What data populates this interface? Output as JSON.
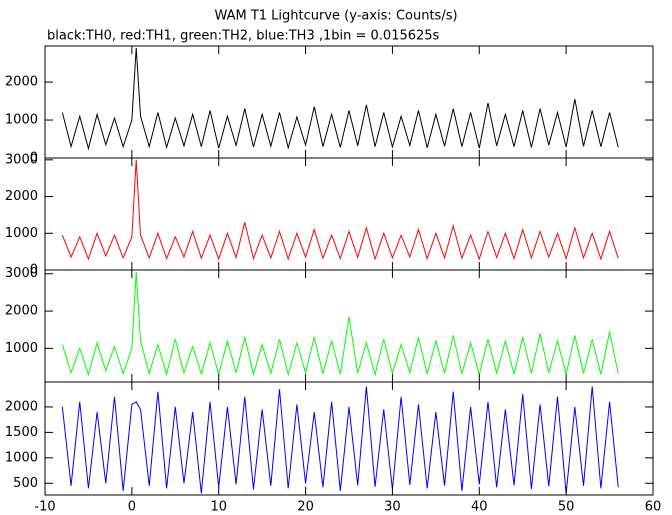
{
  "title": "WAM T1 Lightcurve (y-axis: Counts/s)",
  "subtitle": "black:TH0, red:TH1, green:TH2, blue:TH3 ,1bin = 0.015625s",
  "chart_data": [
    {
      "type": "line",
      "color": "#000000",
      "xlim": [
        -10,
        60
      ],
      "xticks": [
        -10,
        0,
        10,
        20,
        30,
        40,
        50,
        60
      ],
      "ylim": [
        0,
        2950
      ],
      "yticks": [
        0,
        1000,
        2000
      ],
      "x": [
        -8,
        -7,
        -6,
        -5,
        -4,
        -3,
        -2,
        -1,
        0,
        0.5,
        1,
        2,
        3,
        4,
        5,
        6,
        7,
        8,
        9,
        10,
        11,
        12,
        13,
        14,
        15,
        16,
        17,
        18,
        19,
        20,
        21,
        22,
        23,
        24,
        25,
        26,
        27,
        28,
        29,
        30,
        31,
        32,
        33,
        34,
        35,
        36,
        37,
        38,
        39,
        40,
        41,
        42,
        43,
        44,
        45,
        46,
        47,
        48,
        49,
        50,
        51,
        52,
        53,
        54,
        55,
        56
      ],
      "values": [
        1200,
        300,
        1100,
        250,
        1150,
        350,
        1050,
        300,
        1000,
        2900,
        1100,
        300,
        1200,
        280,
        1050,
        320,
        1150,
        300,
        1250,
        260,
        1100,
        330,
        1300,
        290,
        1150,
        310,
        1200,
        270,
        1080,
        340,
        1350,
        300,
        1150,
        280,
        1250,
        320,
        1400,
        300,
        1200,
        290,
        1100,
        330,
        1250,
        270,
        1150,
        310,
        1300,
        300,
        1200,
        260,
        1450,
        320,
        1150,
        300,
        1250,
        280,
        1300,
        340,
        1200,
        290,
        1550,
        310,
        1250,
        300,
        1200,
        280
      ]
    },
    {
      "type": "line",
      "color": "#ff0000",
      "xlim": [
        -10,
        60
      ],
      "xticks": [
        -10,
        0,
        10,
        20,
        30,
        40,
        50,
        60
      ],
      "ylim": [
        0,
        3050
      ],
      "yticks": [
        0,
        1000,
        2000,
        3000
      ],
      "x": [
        -8,
        -7,
        -6,
        -5,
        -4,
        -3,
        -2,
        -1,
        0,
        0.5,
        1,
        2,
        3,
        4,
        5,
        6,
        7,
        8,
        9,
        10,
        11,
        12,
        13,
        14,
        15,
        16,
        17,
        18,
        19,
        20,
        21,
        22,
        23,
        24,
        25,
        26,
        27,
        28,
        29,
        30,
        31,
        32,
        33,
        34,
        35,
        36,
        37,
        38,
        39,
        40,
        41,
        42,
        43,
        44,
        45,
        46,
        47,
        48,
        49,
        50,
        51,
        52,
        53,
        54,
        55,
        56
      ],
      "values": [
        950,
        350,
        900,
        300,
        1000,
        380,
        950,
        330,
        900,
        3000,
        950,
        330,
        1000,
        310,
        900,
        350,
        1050,
        320,
        950,
        300,
        1000,
        340,
        1300,
        310,
        950,
        330,
        1050,
        300,
        1000,
        350,
        1100,
        320,
        950,
        310,
        1050,
        340,
        1150,
        300,
        1000,
        330,
        950,
        350,
        1100,
        310,
        1000,
        330,
        1200,
        320,
        950,
        300,
        1050,
        340,
        1000,
        310,
        1100,
        330,
        1050,
        350,
        1000,
        310,
        1150,
        330,
        1000,
        300,
        1050,
        320
      ]
    },
    {
      "type": "line",
      "color": "#00ff00",
      "xlim": [
        -10,
        60
      ],
      "xticks": [
        -10,
        0,
        10,
        20,
        30,
        40,
        50,
        60
      ],
      "ylim": [
        100,
        3100
      ],
      "yticks": [
        1000,
        2000,
        3000
      ],
      "x": [
        -8,
        -7,
        -6,
        -5,
        -4,
        -3,
        -2,
        -1,
        0,
        0.5,
        1,
        2,
        3,
        4,
        5,
        6,
        7,
        8,
        9,
        10,
        11,
        12,
        13,
        14,
        15,
        16,
        17,
        18,
        19,
        20,
        21,
        22,
        23,
        24,
        25,
        26,
        27,
        28,
        29,
        30,
        31,
        32,
        33,
        34,
        35,
        36,
        37,
        38,
        39,
        40,
        41,
        42,
        43,
        44,
        45,
        46,
        47,
        48,
        49,
        50,
        51,
        52,
        53,
        54,
        55,
        56
      ],
      "values": [
        1100,
        350,
        1000,
        300,
        1150,
        400,
        1050,
        330,
        1000,
        3050,
        1200,
        330,
        1100,
        310,
        1250,
        350,
        1050,
        320,
        1150,
        300,
        1200,
        340,
        1300,
        310,
        1100,
        330,
        1250,
        300,
        1150,
        350,
        1300,
        320,
        1200,
        310,
        1850,
        340,
        1150,
        300,
        1250,
        330,
        1100,
        350,
        1300,
        310,
        1200,
        330,
        1350,
        320,
        1150,
        300,
        1250,
        340,
        1200,
        310,
        1300,
        330,
        1400,
        350,
        1200,
        310,
        1350,
        330,
        1250,
        300,
        1450,
        320
      ]
    },
    {
      "type": "line",
      "color": "#0000ff",
      "xlim": [
        -10,
        60
      ],
      "xticks": [
        -10,
        0,
        10,
        20,
        30,
        40,
        50,
        60
      ],
      "ylim": [
        270,
        2490
      ],
      "yticks": [
        500,
        1000,
        1500,
        2000
      ],
      "x": [
        -8,
        -7,
        -6,
        -5,
        -4,
        -3,
        -2,
        -1,
        0,
        0.5,
        1,
        2,
        3,
        4,
        5,
        6,
        7,
        8,
        9,
        10,
        11,
        12,
        13,
        14,
        15,
        16,
        17,
        18,
        19,
        20,
        21,
        22,
        23,
        24,
        25,
        26,
        27,
        28,
        29,
        30,
        31,
        32,
        33,
        34,
        35,
        36,
        37,
        38,
        39,
        40,
        41,
        42,
        43,
        44,
        45,
        46,
        47,
        48,
        49,
        50,
        51,
        52,
        53,
        54,
        55,
        56
      ],
      "values": [
        2000,
        450,
        2100,
        400,
        1900,
        500,
        2200,
        350,
        2050,
        2100,
        1950,
        450,
        2300,
        400,
        2000,
        500,
        1900,
        300,
        2100,
        420,
        2000,
        480,
        2200,
        380,
        1950,
        450,
        2350,
        400,
        2050,
        500,
        1900,
        420,
        2100,
        350,
        2000,
        460,
        2400,
        430,
        1950,
        380,
        2200,
        470,
        2050,
        400,
        1900,
        450,
        2300,
        350,
        2000,
        480,
        2100,
        420,
        1950,
        460,
        2250,
        390,
        2050,
        440,
        2200,
        300,
        2000,
        450,
        2400,
        400,
        2100,
        420
      ]
    }
  ]
}
